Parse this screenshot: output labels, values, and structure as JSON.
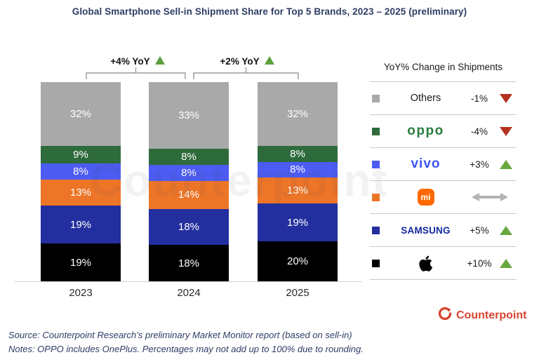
{
  "title": "Global Smartphone Sell-in Shipment Share for Top 5 Brands, 2023 – 2025 (preliminary)",
  "chart_data": {
    "type": "bar",
    "stacked": true,
    "title": "Global Smartphone Sell-in Shipment Share for Top 5 Brands, 2023 – 2025 (preliminary)",
    "categories": [
      "2023",
      "2024",
      "2025"
    ],
    "unit": "%",
    "ylim": [
      0,
      100
    ],
    "grid": false,
    "legend_position": "right",
    "series": [
      {
        "name": "Apple",
        "color": "#000000",
        "values": [
          19,
          18,
          20
        ]
      },
      {
        "name": "Samsung",
        "color": "#232f9e",
        "values": [
          19,
          18,
          19
        ]
      },
      {
        "name": "Xiaomi",
        "color": "#ed7528",
        "values": [
          13,
          14,
          13
        ]
      },
      {
        "name": "vivo",
        "color": "#4c5cf2",
        "values": [
          8,
          8,
          8
        ]
      },
      {
        "name": "OPPO",
        "color": "#2e6b3c",
        "values": [
          9,
          8,
          8
        ]
      },
      {
        "name": "Others",
        "color": "#a9a9a9",
        "values": [
          32,
          33,
          32
        ]
      }
    ],
    "yoy_annotations": [
      {
        "between": [
          "2023",
          "2024"
        ],
        "label": "+4% YoY",
        "trend": "up"
      },
      {
        "between": [
          "2024",
          "2025"
        ],
        "label": "+2% YoY",
        "trend": "up"
      }
    ]
  },
  "legend": {
    "header": "YoY% Change in Shipments",
    "rows": [
      {
        "key": "others",
        "label": "Others",
        "style": "text",
        "color": "#a9a9a9",
        "change": "-1%",
        "trend": "down"
      },
      {
        "key": "oppo",
        "label": "oppo",
        "style": "wordmark",
        "color": "#2e6b3c",
        "change": "-4%",
        "trend": "down"
      },
      {
        "key": "vivo",
        "label": "vivo",
        "style": "wordmark",
        "color": "#4c5cf2",
        "change": "+3%",
        "trend": "up"
      },
      {
        "key": "xiaomi",
        "label": "mi",
        "style": "badge",
        "color": "#ed7528",
        "change": "",
        "trend": "flat"
      },
      {
        "key": "samsung",
        "label": "SAMSUNG",
        "style": "wordmark",
        "color": "#232f9e",
        "change": "+5%",
        "trend": "up"
      },
      {
        "key": "apple",
        "label": "Apple",
        "style": "apple",
        "color": "#000000",
        "change": "+10%",
        "trend": "up"
      }
    ]
  },
  "colors": {
    "trend_up": "#69a83f",
    "trend_down": "#b5321f",
    "trend_flat": "#b3b3b3",
    "title_navy": "#2e3c64",
    "counterpoint_red": "#d8442f"
  },
  "footer": {
    "source": "Source: Counterpoint Research’s preliminary Market Monitor report (based on sell-in)",
    "notes": "Notes: OPPO includes OnePlus. Percentages may not add up to 100% due to rounding."
  },
  "logo": {
    "text": "Counterpoint"
  },
  "watermark": "Counterpoint"
}
